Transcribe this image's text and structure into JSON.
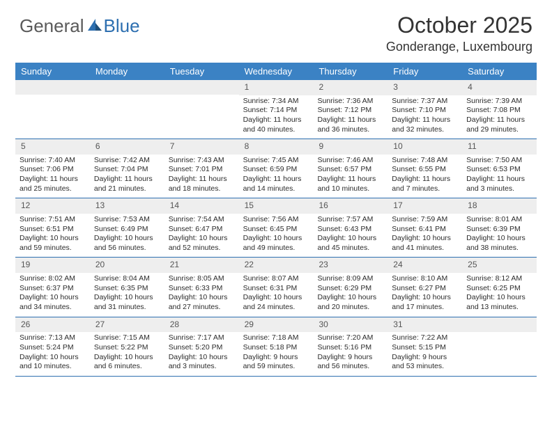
{
  "logo": {
    "text_general": "General",
    "text_blue": "Blue"
  },
  "title": "October 2025",
  "location": "Gonderange, Luxembourg",
  "colors": {
    "header_bg": "#3b82c4",
    "header_text": "#ffffff",
    "daynum_bg": "#eeeeee",
    "rule": "#2d6fb0",
    "text": "#2b2b2b"
  },
  "dow": [
    "Sunday",
    "Monday",
    "Tuesday",
    "Wednesday",
    "Thursday",
    "Friday",
    "Saturday"
  ],
  "weeks": [
    [
      {
        "n": "",
        "sr": "",
        "ss": "",
        "dl": ""
      },
      {
        "n": "",
        "sr": "",
        "ss": "",
        "dl": ""
      },
      {
        "n": "",
        "sr": "",
        "ss": "",
        "dl": ""
      },
      {
        "n": "1",
        "sr": "Sunrise: 7:34 AM",
        "ss": "Sunset: 7:14 PM",
        "dl": "Daylight: 11 hours and 40 minutes."
      },
      {
        "n": "2",
        "sr": "Sunrise: 7:36 AM",
        "ss": "Sunset: 7:12 PM",
        "dl": "Daylight: 11 hours and 36 minutes."
      },
      {
        "n": "3",
        "sr": "Sunrise: 7:37 AM",
        "ss": "Sunset: 7:10 PM",
        "dl": "Daylight: 11 hours and 32 minutes."
      },
      {
        "n": "4",
        "sr": "Sunrise: 7:39 AM",
        "ss": "Sunset: 7:08 PM",
        "dl": "Daylight: 11 hours and 29 minutes."
      }
    ],
    [
      {
        "n": "5",
        "sr": "Sunrise: 7:40 AM",
        "ss": "Sunset: 7:06 PM",
        "dl": "Daylight: 11 hours and 25 minutes."
      },
      {
        "n": "6",
        "sr": "Sunrise: 7:42 AM",
        "ss": "Sunset: 7:04 PM",
        "dl": "Daylight: 11 hours and 21 minutes."
      },
      {
        "n": "7",
        "sr": "Sunrise: 7:43 AM",
        "ss": "Sunset: 7:01 PM",
        "dl": "Daylight: 11 hours and 18 minutes."
      },
      {
        "n": "8",
        "sr": "Sunrise: 7:45 AM",
        "ss": "Sunset: 6:59 PM",
        "dl": "Daylight: 11 hours and 14 minutes."
      },
      {
        "n": "9",
        "sr": "Sunrise: 7:46 AM",
        "ss": "Sunset: 6:57 PM",
        "dl": "Daylight: 11 hours and 10 minutes."
      },
      {
        "n": "10",
        "sr": "Sunrise: 7:48 AM",
        "ss": "Sunset: 6:55 PM",
        "dl": "Daylight: 11 hours and 7 minutes."
      },
      {
        "n": "11",
        "sr": "Sunrise: 7:50 AM",
        "ss": "Sunset: 6:53 PM",
        "dl": "Daylight: 11 hours and 3 minutes."
      }
    ],
    [
      {
        "n": "12",
        "sr": "Sunrise: 7:51 AM",
        "ss": "Sunset: 6:51 PM",
        "dl": "Daylight: 10 hours and 59 minutes."
      },
      {
        "n": "13",
        "sr": "Sunrise: 7:53 AM",
        "ss": "Sunset: 6:49 PM",
        "dl": "Daylight: 10 hours and 56 minutes."
      },
      {
        "n": "14",
        "sr": "Sunrise: 7:54 AM",
        "ss": "Sunset: 6:47 PM",
        "dl": "Daylight: 10 hours and 52 minutes."
      },
      {
        "n": "15",
        "sr": "Sunrise: 7:56 AM",
        "ss": "Sunset: 6:45 PM",
        "dl": "Daylight: 10 hours and 49 minutes."
      },
      {
        "n": "16",
        "sr": "Sunrise: 7:57 AM",
        "ss": "Sunset: 6:43 PM",
        "dl": "Daylight: 10 hours and 45 minutes."
      },
      {
        "n": "17",
        "sr": "Sunrise: 7:59 AM",
        "ss": "Sunset: 6:41 PM",
        "dl": "Daylight: 10 hours and 41 minutes."
      },
      {
        "n": "18",
        "sr": "Sunrise: 8:01 AM",
        "ss": "Sunset: 6:39 PM",
        "dl": "Daylight: 10 hours and 38 minutes."
      }
    ],
    [
      {
        "n": "19",
        "sr": "Sunrise: 8:02 AM",
        "ss": "Sunset: 6:37 PM",
        "dl": "Daylight: 10 hours and 34 minutes."
      },
      {
        "n": "20",
        "sr": "Sunrise: 8:04 AM",
        "ss": "Sunset: 6:35 PM",
        "dl": "Daylight: 10 hours and 31 minutes."
      },
      {
        "n": "21",
        "sr": "Sunrise: 8:05 AM",
        "ss": "Sunset: 6:33 PM",
        "dl": "Daylight: 10 hours and 27 minutes."
      },
      {
        "n": "22",
        "sr": "Sunrise: 8:07 AM",
        "ss": "Sunset: 6:31 PM",
        "dl": "Daylight: 10 hours and 24 minutes."
      },
      {
        "n": "23",
        "sr": "Sunrise: 8:09 AM",
        "ss": "Sunset: 6:29 PM",
        "dl": "Daylight: 10 hours and 20 minutes."
      },
      {
        "n": "24",
        "sr": "Sunrise: 8:10 AM",
        "ss": "Sunset: 6:27 PM",
        "dl": "Daylight: 10 hours and 17 minutes."
      },
      {
        "n": "25",
        "sr": "Sunrise: 8:12 AM",
        "ss": "Sunset: 6:25 PM",
        "dl": "Daylight: 10 hours and 13 minutes."
      }
    ],
    [
      {
        "n": "26",
        "sr": "Sunrise: 7:13 AM",
        "ss": "Sunset: 5:24 PM",
        "dl": "Daylight: 10 hours and 10 minutes."
      },
      {
        "n": "27",
        "sr": "Sunrise: 7:15 AM",
        "ss": "Sunset: 5:22 PM",
        "dl": "Daylight: 10 hours and 6 minutes."
      },
      {
        "n": "28",
        "sr": "Sunrise: 7:17 AM",
        "ss": "Sunset: 5:20 PM",
        "dl": "Daylight: 10 hours and 3 minutes."
      },
      {
        "n": "29",
        "sr": "Sunrise: 7:18 AM",
        "ss": "Sunset: 5:18 PM",
        "dl": "Daylight: 9 hours and 59 minutes."
      },
      {
        "n": "30",
        "sr": "Sunrise: 7:20 AM",
        "ss": "Sunset: 5:16 PM",
        "dl": "Daylight: 9 hours and 56 minutes."
      },
      {
        "n": "31",
        "sr": "Sunrise: 7:22 AM",
        "ss": "Sunset: 5:15 PM",
        "dl": "Daylight: 9 hours and 53 minutes."
      },
      {
        "n": "",
        "sr": "",
        "ss": "",
        "dl": ""
      }
    ]
  ]
}
